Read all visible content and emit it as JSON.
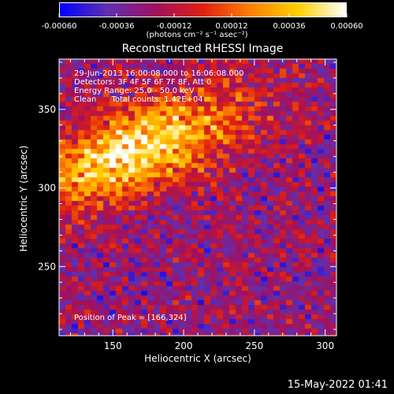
{
  "colorbar": {
    "ticks": [
      "-0.00060",
      "-0.00036",
      "-0.00012",
      "0.00012",
      "0.00036",
      "0.00060"
    ],
    "units_label": "(photons cm⁻² s⁻¹ asec⁻²)"
  },
  "annotations": {
    "time": "29-Jun-2013 16:00:08.000 to 16:06:08.000",
    "detectors": "Detectors: 3F 4F 5F 6F 7F 8F, Att 0",
    "energy": "Energy Range: 25.0 - 50.0 keV",
    "method": "Clean      Total counts: 1.42E+04",
    "peak": "Position of Peak = [166,324]"
  },
  "footer": {
    "date": "15-May-2022 01:41"
  },
  "chart_data": {
    "type": "heatmap",
    "title": "Reconstructed RHESSI Image",
    "xlabel": "Heliocentric X (arcsec)",
    "ylabel": "Heliocentric Y (arcsec)",
    "xlim": [
      112,
      308
    ],
    "ylim": [
      206,
      382
    ],
    "xticks": [
      150,
      200,
      250,
      300
    ],
    "yticks": [
      250,
      300,
      350
    ],
    "colorbar_range": [
      -0.0006,
      0.0006
    ],
    "colormap": [
      "#0000ff",
      "#6030b0",
      "#a01060",
      "#e02010",
      "#ff8000",
      "#ffd000",
      "#ffffff"
    ],
    "peak_position": [
      166,
      324
    ],
    "total_counts": 14200
  }
}
